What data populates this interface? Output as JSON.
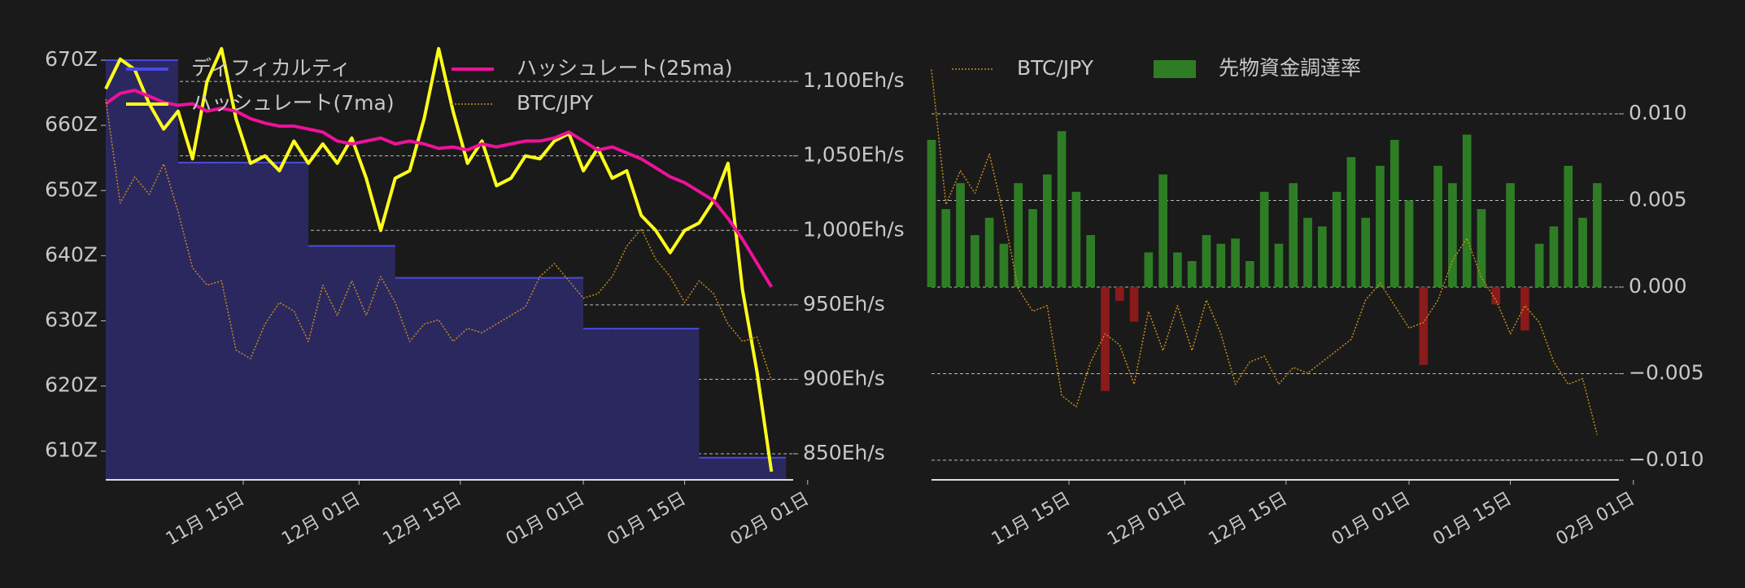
{
  "chart_data": [
    {
      "type": "line",
      "x": [
        "10-27",
        "10-29",
        "10-31",
        "11-02",
        "11-04",
        "11-06",
        "11-08",
        "11-10",
        "11-12",
        "11-14",
        "11-16",
        "11-18",
        "11-20",
        "11-22",
        "11-24",
        "11-26",
        "11-28",
        "11-30",
        "12-02",
        "12-04",
        "12-06",
        "12-08",
        "12-10",
        "12-12",
        "12-14",
        "12-16",
        "12-18",
        "12-20",
        "12-22",
        "12-24",
        "12-26",
        "12-28",
        "12-30",
        "01-01",
        "01-03",
        "01-05",
        "01-07",
        "01-09",
        "01-11",
        "01-13",
        "01-15",
        "01-17",
        "01-19",
        "01-21",
        "01-23",
        "01-25",
        "01-27"
      ],
      "xlim": [
        "10-27",
        "01-30"
      ],
      "xticks": [
        {
          "value": "11-15",
          "label": "11月 15日"
        },
        {
          "value": "12-01",
          "label": "12月 01日"
        },
        {
          "value": "12-15",
          "label": "12月 15日"
        },
        {
          "value": "01-01",
          "label": "01月 01日"
        },
        {
          "value": "01-15",
          "label": "01月 15日"
        },
        {
          "value": "02-01",
          "label": "02月 01日"
        }
      ],
      "ylim": [
        605.6,
        672
      ],
      "yticks": [
        {
          "value": 610,
          "label": "610Z"
        },
        {
          "value": 620,
          "label": "620Z"
        },
        {
          "value": 630,
          "label": "630Z"
        },
        {
          "value": 640,
          "label": "640Z"
        },
        {
          "value": 650,
          "label": "650Z"
        },
        {
          "value": 660,
          "label": "660Z"
        },
        {
          "value": 670,
          "label": "670Z"
        }
      ],
      "y2lim": [
        832.5,
        1123
      ],
      "y2ticks": [
        {
          "value": 850,
          "label": "850Eh/s"
        },
        {
          "value": 900,
          "label": "900Eh/s"
        },
        {
          "value": 950,
          "label": "950Eh/s"
        },
        {
          "value": 1000,
          "label": "1,000Eh/s"
        },
        {
          "value": 1050,
          "label": "1,050Eh/s"
        },
        {
          "value": 1100,
          "label": "1,100Eh/s"
        }
      ],
      "y3lim": [
        0,
        100
      ],
      "grid": "y2",
      "legend": "upper left",
      "series": [
        {
          "name": "ディフィカルティ",
          "type": "area",
          "axis": "y",
          "color": "#4a4ae0",
          "fill": "#2b2860",
          "values": [
            670,
            670,
            670,
            670,
            670,
            654.3,
            654.3,
            654.3,
            654.3,
            654.3,
            654.3,
            654.3,
            654.3,
            654.3,
            641.5,
            641.5,
            641.5,
            641.5,
            641.5,
            641.5,
            636.6,
            636.6,
            636.6,
            636.6,
            636.6,
            636.6,
            636.6,
            636.6,
            636.6,
            636.6,
            636.6,
            636.6,
            636.6,
            628.8,
            628.8,
            628.8,
            628.8,
            628.8,
            628.8,
            628.8,
            628.8,
            609,
            609,
            609,
            609,
            609,
            609
          ]
        },
        {
          "name": "ハッシュレート(7ma)",
          "type": "line",
          "axis": "y2",
          "color": "#ffff1a",
          "values": [
            1095,
            1115,
            1108,
            1085,
            1068,
            1080,
            1048,
            1100,
            1122,
            1075,
            1045,
            1050,
            1040,
            1060,
            1045,
            1058,
            1045,
            1062,
            1035,
            1000,
            1035,
            1040,
            1075,
            1122,
            1080,
            1045,
            1060,
            1030,
            1035,
            1050,
            1048,
            1060,
            1065,
            1040,
            1055,
            1035,
            1040,
            1010,
            1000,
            985,
            1000,
            1005,
            1020,
            1045,
            960,
            905,
            838
          ]
        },
        {
          "name": "ハッシュレート(25ma)",
          "type": "line",
          "axis": "y2",
          "color": "#ee1199",
          "values": [
            1085,
            1092,
            1094,
            1090,
            1086,
            1084,
            1085,
            1080,
            1082,
            1080,
            1075,
            1072,
            1070,
            1070,
            1068,
            1066,
            1060,
            1058,
            1060,
            1062,
            1058,
            1060,
            1058,
            1055,
            1056,
            1054,
            1058,
            1056,
            1058,
            1060,
            1060,
            1062,
            1066,
            1060,
            1054,
            1056,
            1052,
            1048,
            1042,
            1036,
            1032,
            1026,
            1020,
            1008,
            994,
            978,
            962
          ]
        },
        {
          "name": "BTC/JPY",
          "type": "line",
          "axis": "y3",
          "color": "#c98a1a",
          "dash": true,
          "values": [
            88,
            64,
            70,
            66,
            73,
            62,
            49,
            45,
            46,
            30,
            28,
            36,
            41,
            39,
            32,
            45,
            38,
            46,
            38,
            47,
            41,
            32,
            36,
            37,
            32,
            35,
            34,
            36,
            38,
            40,
            47,
            50,
            46,
            42,
            43,
            47,
            54,
            58,
            51,
            47,
            41,
            46,
            43,
            36,
            32,
            33,
            23
          ]
        }
      ]
    },
    {
      "type": "bar",
      "x": [
        "10-27",
        "10-29",
        "10-31",
        "11-02",
        "11-04",
        "11-06",
        "11-08",
        "11-10",
        "11-12",
        "11-14",
        "11-16",
        "11-18",
        "11-20",
        "11-22",
        "11-24",
        "11-26",
        "11-28",
        "11-30",
        "12-02",
        "12-04",
        "12-06",
        "12-08",
        "12-10",
        "12-12",
        "12-14",
        "12-16",
        "12-18",
        "12-20",
        "12-22",
        "12-24",
        "12-26",
        "12-28",
        "12-30",
        "01-01",
        "01-03",
        "01-05",
        "01-07",
        "01-09",
        "01-11",
        "01-13",
        "01-15",
        "01-17",
        "01-19",
        "01-21",
        "01-23",
        "01-25",
        "01-27"
      ],
      "xlim": [
        "10-27",
        "01-30"
      ],
      "xticks": [
        {
          "value": "11-15",
          "label": "11月 15日"
        },
        {
          "value": "12-01",
          "label": "12月 01日"
        },
        {
          "value": "12-15",
          "label": "12月 15日"
        },
        {
          "value": "01-01",
          "label": "01月 01日"
        },
        {
          "value": "01-15",
          "label": "01月 15日"
        },
        {
          "value": "02-01",
          "label": "02月 01日"
        }
      ],
      "y2lim": [
        -0.01113,
        0.01385
      ],
      "y2ticks": [
        {
          "value": -0.01,
          "label": "−0.010"
        },
        {
          "value": -0.005,
          "label": "−0.005"
        },
        {
          "value": 0,
          "label": "0.000"
        },
        {
          "value": 0.005,
          "label": "0.005"
        },
        {
          "value": 0.01,
          "label": "0.010"
        }
      ],
      "y3lim": [
        15,
        92
      ],
      "grid": "y2",
      "legend": "upper left",
      "series": [
        {
          "name": "BTC/JPY",
          "type": "line",
          "axis": "y3",
          "color": "#c98a1a",
          "dash": true,
          "values": [
            88,
            64,
            70,
            66,
            73,
            62,
            49,
            45,
            46,
            30,
            28,
            36,
            41,
            39,
            32,
            45,
            38,
            46,
            38,
            47,
            41,
            32,
            36,
            37,
            32,
            35,
            34,
            36,
            38,
            40,
            47,
            50,
            46,
            42,
            43,
            47,
            54,
            58,
            51,
            47,
            41,
            46,
            43,
            36,
            32,
            33,
            23
          ]
        },
        {
          "name": "先物資金調達率",
          "type": "bar",
          "axis": "y2",
          "color": "#2e7d25",
          "negative_color": "#8b1a1a",
          "values": [
            0.0085,
            0.0045,
            0.006,
            0.003,
            0.004,
            0.0025,
            0.006,
            0.0045,
            0.0065,
            0.009,
            0.0055,
            0.003,
            -0.006,
            -0.0008,
            -0.002,
            0.002,
            0.0065,
            0.002,
            0.0015,
            0.003,
            0.0025,
            0.0028,
            0.0015,
            0.0055,
            0.0025,
            0.006,
            0.004,
            0.0035,
            0.0055,
            0.0075,
            0.004,
            0.007,
            0.0085,
            0.005,
            -0.0045,
            0.007,
            0.006,
            0.0088,
            0.0045,
            -0.001,
            0.006,
            -0.0025,
            0.0025,
            0.0035,
            0.007,
            0.004,
            0.006
          ]
        }
      ]
    }
  ]
}
